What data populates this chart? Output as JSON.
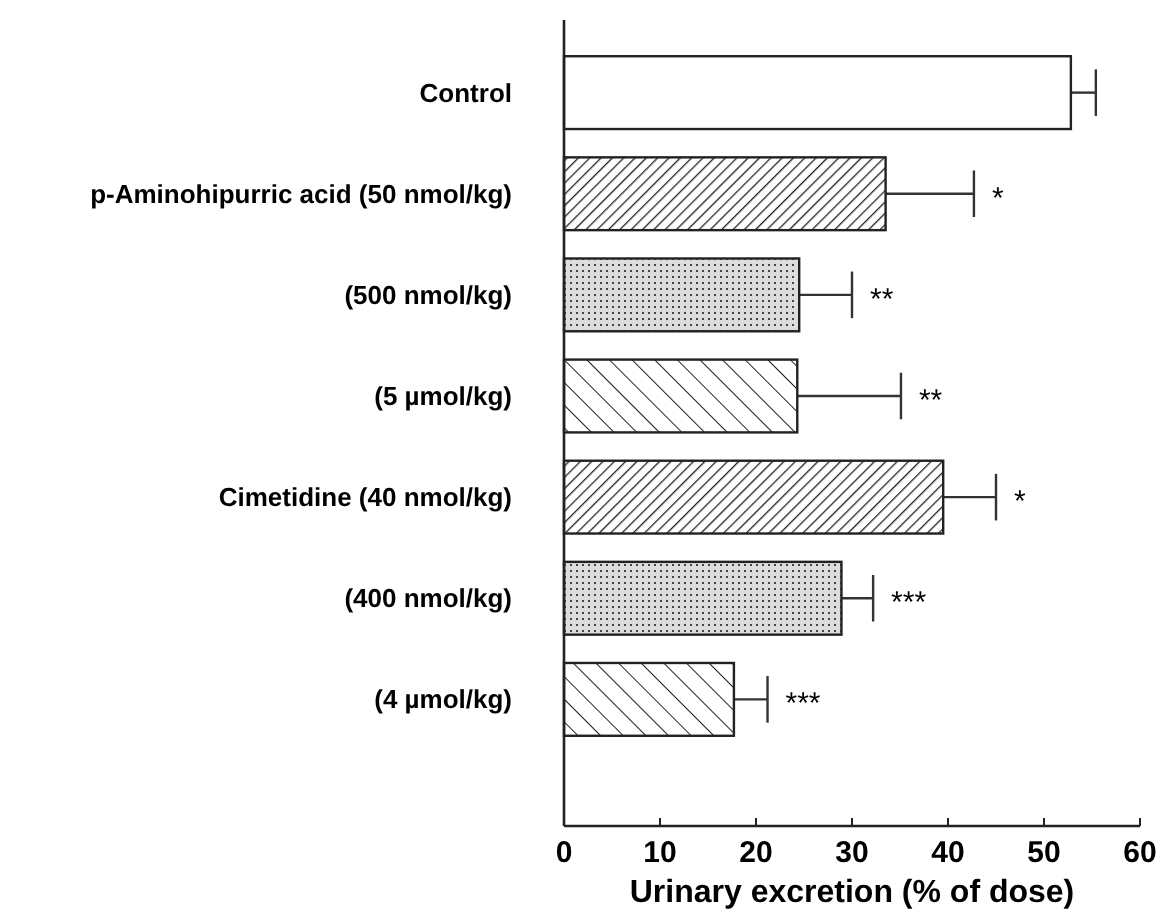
{
  "chart_data": {
    "type": "bar",
    "orientation": "horizontal",
    "xlabel": "Urinary excretion (% of dose)",
    "categories": [
      "Control",
      "p-Aminohipurric acid (50 nmol/kg)",
      "(500 nmol/kg)",
      "(5 µmol/kg)",
      "Cimetidine (40 nmol/kg)",
      "(400 nmol/kg)",
      "(4 µmol/kg)"
    ],
    "values": [
      52.8,
      33.5,
      24.5,
      24.3,
      39.5,
      28.9,
      17.7
    ],
    "errors": [
      2.6,
      9.2,
      5.5,
      10.8,
      5.5,
      3.3,
      3.5
    ],
    "colors": [
      "#ffffff",
      "#ffffff",
      "#ffffff",
      "#ffffff",
      "#ffffff",
      "#ffffff",
      "#ffffff"
    ],
    "xlim": [
      0,
      60
    ],
    "xticks": [
      0,
      10,
      20,
      30,
      40,
      50,
      60
    ],
    "grid": false,
    "annotations": [
      {
        "text": "*",
        "x": 42.7,
        "y": "p-Aminohipurric acid (50 nmol/kg)"
      },
      {
        "text": "**",
        "x": 30.0,
        "y": "(500 nmol/kg)"
      },
      {
        "text": "**",
        "x": 35.1,
        "y": "(5 µmol/kg)"
      },
      {
        "text": "*",
        "x": 45.0,
        "y": "Cimetidine (40 nmol/kg)"
      },
      {
        "text": "***",
        "x": 32.2,
        "y": "(400 nmol/kg)"
      },
      {
        "text": "***",
        "x": 21.2,
        "y": "(4 µmol/kg)"
      }
    ]
  }
}
